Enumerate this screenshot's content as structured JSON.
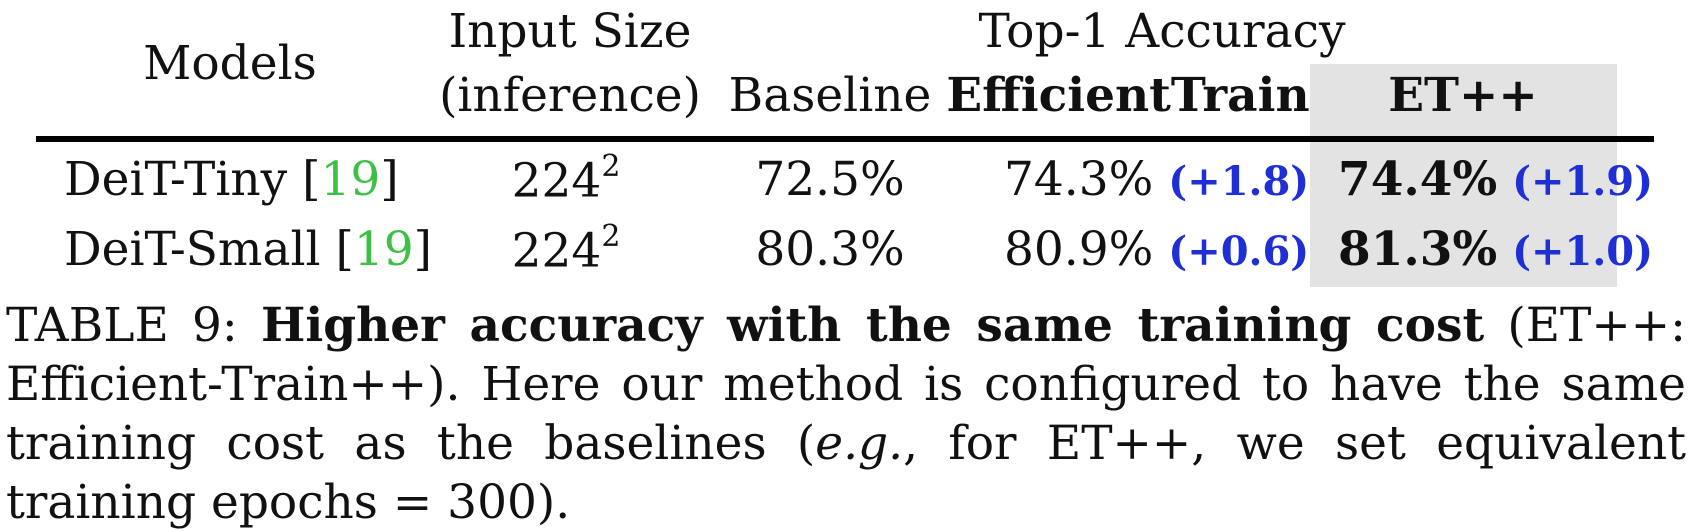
{
  "table": {
    "header": {
      "models": "Models",
      "input_size_line1": "Input Size",
      "input_size_line2": "(inference)",
      "top1_group": "Top-1 Accuracy",
      "baseline": "Baseline",
      "efficienttrain": "EfficientTrain",
      "etpp": "ET++"
    },
    "rows": [
      {
        "model": "DeiT-Tiny [",
        "cite": "19",
        "model_end": "]",
        "input_base": "224",
        "input_exp": "2",
        "baseline": "72.5%",
        "efficienttrain": "74.3%",
        "efficienttrain_delta": "(+1.8)",
        "etpp": "74.4%",
        "etpp_delta": "(+1.9)"
      },
      {
        "model": "DeiT-Small [",
        "cite": "19",
        "model_end": "]",
        "input_base": "224",
        "input_exp": "2",
        "baseline": "80.3%",
        "efficienttrain": "80.9%",
        "efficienttrain_delta": "(+0.6)",
        "etpp": "81.3%",
        "etpp_delta": "(+1.0)"
      }
    ],
    "colors": {
      "delta": "#1f2fd6",
      "cite": "#3ec046",
      "highlight": "#e3e3e3"
    }
  },
  "caption": {
    "label": "TABLE 9: ",
    "bold": "Higher accuracy with the same training cost",
    "part1": " (ET++: Efficient-Train++). Here our method is configured to have the same training cost as the baselines (",
    "italic": "e.g.",
    "part2": ", for ET++, we set equivalent training epochs = 300)."
  }
}
